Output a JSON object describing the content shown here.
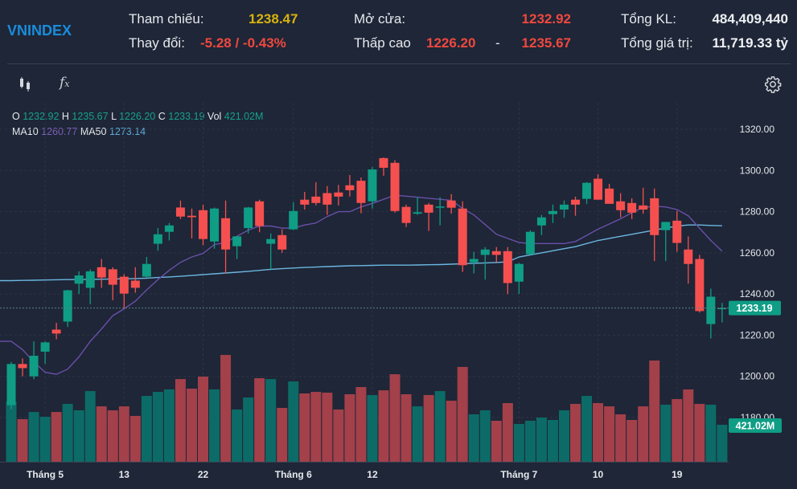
{
  "header": {
    "title": "VNINDEX",
    "ref_label": "Tham chiếu:",
    "ref_value": "1238.47",
    "change_label": "Thay đổi:",
    "change_value": "-5.28 / -0.43%",
    "open_label": "Mở cửa:",
    "open_value": "1232.92",
    "lowhigh_label": "Thấp cao",
    "low_value": "1226.20",
    "dash": "-",
    "high_value": "1235.67",
    "total_vol_label": "Tổng KL:",
    "total_vol_value": "484,409,440",
    "total_val_label": "Tổng giá trị:",
    "total_val_value": "11,719.33 tỷ"
  },
  "toolbar": {
    "candle_icon": "candlestick-icon",
    "indicator_icon": "fx-icon",
    "settings_icon": "gear-icon"
  },
  "legend": {
    "o_label": "O",
    "o_value": "1232.92",
    "h_label": "H",
    "h_value": "1235.67",
    "l_label": "L",
    "l_value": "1226.20",
    "c_label": "C",
    "c_value": "1233.19",
    "vol_label": "Vol",
    "vol_value": "421.02M",
    "ma10_label": "MA10",
    "ma10_value": "1260.77",
    "ma50_label": "MA50",
    "ma50_value": "1273.14"
  },
  "colors": {
    "up": "#0f9d85",
    "down": "#f5504f",
    "vol_up": "#0c6b67",
    "vol_down": "#a3404a",
    "ma10": "#6a4fa8",
    "ma50": "#6cb6e0",
    "badge": "#0f9d85"
  },
  "chart_data": {
    "type": "candlestick",
    "price_axis": {
      "min": 1180,
      "max": 1320,
      "ticks": [
        "1320.00",
        "1300.00",
        "1280.00",
        "1260.00",
        "1240.00",
        "1220.00",
        "1200.00",
        "1180.00"
      ]
    },
    "last_price_label": "1233.19",
    "last_price": 1233.19,
    "last_volume_label": "421.02M",
    "x_labels": [
      {
        "index": 3,
        "label": "Tháng 5"
      },
      {
        "index": 10,
        "label": "13"
      },
      {
        "index": 17,
        "label": "22"
      },
      {
        "index": 25,
        "label": "Tháng 6"
      },
      {
        "index": 32,
        "label": "12"
      },
      {
        "index": 45,
        "label": "Tháng 7"
      },
      {
        "index": 52,
        "label": "10"
      },
      {
        "index": 59,
        "label": "19"
      }
    ],
    "ohlc": [
      [
        1186,
        1207,
        1184,
        1206
      ],
      [
        1206,
        1208.7,
        1200,
        1204
      ],
      [
        1200,
        1217,
        1198.6,
        1210
      ],
      [
        1212,
        1217,
        1206,
        1216.5
      ],
      [
        1222.7,
        1226,
        1218,
        1220.8
      ],
      [
        1226.6,
        1242,
        1224,
        1241.8
      ],
      [
        1245,
        1251,
        1240,
        1249
      ],
      [
        1243,
        1252,
        1235,
        1251
      ],
      [
        1253,
        1257,
        1243,
        1248
      ],
      [
        1252,
        1253,
        1237,
        1244.5
      ],
      [
        1248.4,
        1249.6,
        1233,
        1240.2
      ],
      [
        1246.5,
        1253,
        1240.6,
        1243
      ],
      [
        1248.4,
        1258,
        1248,
        1254.6
      ],
      [
        1264.4,
        1272,
        1261,
        1269
      ],
      [
        1270.2,
        1274.5,
        1266,
        1273.3
      ],
      [
        1282,
        1285.4,
        1276.4,
        1277.6
      ],
      [
        1278,
        1281.5,
        1267,
        1277.3
      ],
      [
        1280.7,
        1283.4,
        1263.6,
        1266.7
      ],
      [
        1265.5,
        1282,
        1262,
        1281.5
      ],
      [
        1276.8,
        1285.4,
        1250,
        1261.6
      ],
      [
        1263.2,
        1268,
        1257,
        1268
      ],
      [
        1272,
        1282.3,
        1269.4,
        1282
      ],
      [
        1285,
        1285.8,
        1270,
        1273
      ],
      [
        1264.4,
        1269.4,
        1252,
        1266.7
      ],
      [
        1268.6,
        1271.4,
        1260,
        1261.6
      ],
      [
        1271.4,
        1284.6,
        1271,
        1280.3
      ],
      [
        1285.8,
        1289.6,
        1281,
        1283.4
      ],
      [
        1287.3,
        1294.3,
        1283,
        1284.2
      ],
      [
        1289,
        1292.4,
        1278.4,
        1283.4
      ],
      [
        1289.3,
        1293,
        1283,
        1287.3
      ],
      [
        1292.8,
        1297.8,
        1287.3,
        1290.4
      ],
      [
        1295,
        1296.6,
        1279.2,
        1284.2
      ],
      [
        1285,
        1301.7,
        1281.5,
        1300.5
      ],
      [
        1306,
        1306.3,
        1297.4,
        1301.3
      ],
      [
        1303.7,
        1305,
        1279.5,
        1280.3
      ],
      [
        1282.3,
        1283.4,
        1272.5,
        1274.5
      ],
      [
        1279,
        1287,
        1278.4,
        1279.7
      ],
      [
        1283.4,
        1284.2,
        1270.6,
        1279.5
      ],
      [
        1282,
        1287,
        1273.3,
        1282.5
      ],
      [
        1285.4,
        1288.5,
        1279,
        1281.9
      ],
      [
        1281.5,
        1285,
        1250.7,
        1254
      ],
      [
        1255.4,
        1260.5,
        1250,
        1257
      ],
      [
        1259,
        1262.8,
        1247,
        1261.6
      ],
      [
        1260.8,
        1262.8,
        1255.4,
        1259
      ],
      [
        1260.8,
        1262.8,
        1240,
        1245.3
      ],
      [
        1246,
        1255,
        1240,
        1254.6
      ],
      [
        1259.3,
        1271,
        1259,
        1270.2
      ],
      [
        1273.3,
        1278.4,
        1268.6,
        1277.2
      ],
      [
        1278.8,
        1283.4,
        1274.5,
        1280.3
      ],
      [
        1281,
        1285.4,
        1277,
        1283.4
      ],
      [
        1285.8,
        1287.3,
        1278,
        1283.4
      ],
      [
        1286.2,
        1294.3,
        1283.8,
        1294
      ],
      [
        1296,
        1298.2,
        1285.8,
        1285.8
      ],
      [
        1291.2,
        1293.5,
        1283.8,
        1283.8
      ],
      [
        1285,
        1289,
        1277.2,
        1280.7
      ],
      [
        1284.2,
        1286.5,
        1276.4,
        1279.5
      ],
      [
        1283,
        1291.6,
        1279,
        1281
      ],
      [
        1286.5,
        1291.2,
        1256,
        1268.6
      ],
      [
        1271,
        1275,
        1256,
        1275
      ],
      [
        1275.6,
        1280.3,
        1260.5,
        1264.8
      ],
      [
        1261.6,
        1268,
        1245,
        1254.6
      ],
      [
        1257,
        1259,
        1231,
        1231.7
      ],
      [
        1225.4,
        1242.6,
        1218.4,
        1238.7
      ],
      [
        1232.92,
        1235.67,
        1226.2,
        1233.19
      ]
    ],
    "volume_millions": [
      686,
      485,
      567,
      512,
      567,
      659,
      586,
      805,
      631,
      586,
      631,
      522,
      750,
      796,
      824,
      942,
      833,
      970,
      824,
      1217,
      595,
      732,
      952,
      942,
      613,
      915,
      778,
      796,
      787,
      595,
      769,
      851,
      760,
      814,
      997,
      769,
      631,
      760,
      805,
      695,
      1080,
      540,
      586,
      467,
      668,
      430,
      467,
      503,
      476,
      586,
      659,
      750,
      668,
      631,
      540,
      476,
      631,
      1153,
      650,
      714,
      824,
      659,
      650,
      421.02
    ],
    "ma10": [
      1217,
      1213,
      1207,
      1202,
      1201,
      1203.5,
      1209.5,
      1217,
      1223,
      1229.5,
      1232.8,
      1236.5,
      1242,
      1247,
      1251.5,
      1255.4,
      1258,
      1259.7,
      1264,
      1265,
      1268,
      1271,
      1273,
      1273,
      1272,
      1272,
      1273.5,
      1274.5,
      1277.6,
      1280,
      1280,
      1282.3,
      1284,
      1286,
      1288,
      1287.5,
      1287,
      1286.5,
      1286,
      1285.5,
      1281.5,
      1278.4,
      1273.7,
      1269,
      1267,
      1265,
      1264.5,
      1264.5,
      1264.5,
      1264.5,
      1265.5,
      1268.5,
      1271.5,
      1274,
      1276.5,
      1279.5,
      1282,
      1282.6,
      1282.3,
      1281,
      1278,
      1272,
      1266,
      1260.77
    ],
    "ma50": [
      1246.5,
      1246.6,
      1246.7,
      1246.8,
      1246.9,
      1247,
      1247,
      1247.1,
      1247.2,
      1247.3,
      1247.4,
      1247.5,
      1247.7,
      1248,
      1248.3,
      1248.6,
      1249,
      1249.4,
      1249.8,
      1250.2,
      1250.6,
      1251,
      1251.5,
      1252,
      1252.3,
      1252.6,
      1252.9,
      1253.1,
      1253.3,
      1253.5,
      1253.7,
      1253.8,
      1253.9,
      1254,
      1254,
      1254,
      1254.1,
      1254.2,
      1254.3,
      1254.5,
      1254.7,
      1254.9,
      1255.1,
      1255.3,
      1255.6,
      1258,
      1259,
      1260,
      1261,
      1262,
      1263,
      1264.5,
      1266,
      1267,
      1268,
      1269,
      1270,
      1271,
      1272,
      1273,
      1273.5,
      1273.5,
      1273.3,
      1273.14
    ]
  }
}
